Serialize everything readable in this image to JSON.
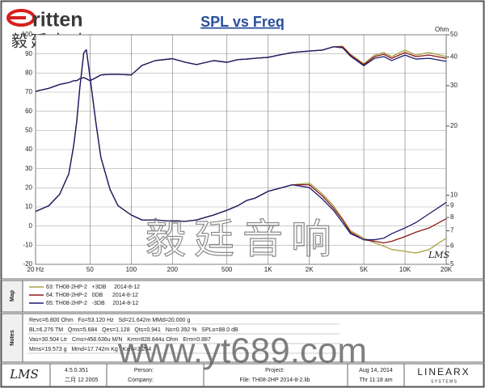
{
  "header": {
    "logo": "ritten",
    "logo_cn": "毅廷音响"
  },
  "chart_data": {
    "type": "line",
    "title": "SPL vs Freq",
    "y2_label": "Ohm",
    "corner_mark": "LMS",
    "x_scale": "log",
    "y2_scale": "log",
    "grid": true,
    "x": [
      20,
      25,
      30,
      35,
      38,
      40,
      42,
      45,
      47,
      50,
      55,
      60,
      70,
      80,
      100,
      120,
      150,
      200,
      250,
      300,
      400,
      500,
      600,
      700,
      800,
      1000,
      1200,
      1500,
      2000,
      2500,
      3000,
      3500,
      4000,
      5000,
      6000,
      7000,
      8000,
      10000,
      12000,
      15000,
      20000
    ],
    "xlim": [
      20,
      20000
    ],
    "xticks": [
      {
        "value": 20,
        "label": "20 Hz"
      },
      50,
      100,
      200,
      500,
      {
        "value": 1000,
        "label": "1K"
      },
      {
        "value": 2000,
        "label": "2K"
      },
      {
        "value": 5000,
        "label": "5K"
      },
      {
        "value": 10000,
        "label": "10K"
      },
      {
        "value": 20000,
        "label": "20K"
      }
    ],
    "ylim": [
      -20,
      100
    ],
    "yticks": [
      100,
      90,
      80,
      70,
      60,
      50,
      40,
      30,
      20,
      10,
      0,
      -10,
      -20
    ],
    "y2lim": [
      5,
      50
    ],
    "y2ticks": [
      50,
      40,
      30,
      20,
      10,
      9,
      8,
      7,
      6,
      5
    ],
    "series": [
      {
        "name": "63: TH08-2HP-2   +3DB     2014-8-12",
        "color": "#a8a040",
        "values": [
          70.4,
          72,
          74,
          75,
          76,
          76,
          77,
          77.6,
          77,
          76,
          77.5,
          79,
          79.3,
          79.3,
          79,
          84,
          86.5,
          87.5,
          85.6,
          84.4,
          86.5,
          85.6,
          87,
          87.3,
          87.7,
          88.2,
          89.4,
          90.7,
          91.5,
          92,
          93.7,
          94,
          89.8,
          84.8,
          89.4,
          90.7,
          88.6,
          92,
          89.4,
          90.7,
          88.6
        ]
      },
      {
        "name": "64: TH08-2HP-2   0DB      2014-8-12",
        "color": "#8b1a1a",
        "values": [
          70.4,
          72,
          74,
          75,
          76,
          76,
          77,
          77.6,
          77,
          76,
          77.5,
          79,
          79.3,
          79.3,
          79,
          84,
          86.5,
          87.5,
          85.6,
          84.4,
          86.5,
          85.6,
          87,
          87.3,
          87.7,
          88.2,
          89.4,
          90.7,
          91.5,
          92,
          93.7,
          93.7,
          89.4,
          84.4,
          88.6,
          89.8,
          87.7,
          90.7,
          88.6,
          89.4,
          87.7
        ]
      },
      {
        "name": "65: TH08-2HP-2   -3DB     2014-8-12",
        "color": "#1c1c6e",
        "values": [
          70.4,
          72,
          74,
          75,
          76,
          76,
          77,
          77.6,
          77,
          76,
          77.5,
          79,
          79.3,
          79.3,
          79,
          84,
          86.5,
          87.5,
          85.6,
          84.4,
          86.5,
          85.6,
          87,
          87.3,
          87.7,
          88.2,
          89.4,
          90.7,
          91.5,
          92,
          93.7,
          93.2,
          88.8,
          83.8,
          87.7,
          88.6,
          86.5,
          89.4,
          87.3,
          87.7,
          86.1
        ]
      },
      {
        "color": "#a8a040",
        "axis": "y2",
        "values": [
          8.5,
          9.0,
          10.1,
          12.4,
          16.5,
          21,
          29,
          41.7,
          43,
          32.7,
          21,
          14.6,
          10.6,
          9.0,
          8.2,
          7.8,
          7.8,
          7.7,
          7.7,
          7.8,
          8.2,
          8.6,
          9.0,
          9.5,
          9.7,
          10.4,
          10.7,
          11.1,
          11.3,
          10.1,
          9.0,
          7.9,
          7.0,
          6.5,
          6.2,
          6.0,
          5.8,
          5.7,
          5.6,
          5.8,
          6.5
        ]
      },
      {
        "color": "#8b1a1a",
        "axis": "y2",
        "values": [
          8.5,
          9.0,
          10.1,
          12.4,
          16.5,
          21,
          29,
          41.7,
          43,
          32.7,
          21,
          14.6,
          10.6,
          9.0,
          8.2,
          7.8,
          7.8,
          7.7,
          7.7,
          7.8,
          8.2,
          8.6,
          9.0,
          9.5,
          9.7,
          10.4,
          10.7,
          11.1,
          11.1,
          9.9,
          8.8,
          7.8,
          6.9,
          6.4,
          6.3,
          6.2,
          6.3,
          6.6,
          6.9,
          7.2,
          7.9
        ]
      },
      {
        "color": "#1c1c6e",
        "axis": "y2",
        "values": [
          8.5,
          9.0,
          10.1,
          12.4,
          16.5,
          21,
          29,
          41.7,
          43,
          32.7,
          21,
          14.6,
          10.6,
          9.0,
          8.2,
          7.8,
          7.8,
          7.7,
          7.7,
          7.8,
          8.2,
          8.6,
          9.0,
          9.5,
          9.7,
          10.4,
          10.7,
          11.1,
          10.8,
          9.6,
          8.6,
          7.6,
          6.8,
          6.4,
          6.4,
          6.5,
          6.8,
          7.2,
          7.6,
          8.3,
          9.3
        ]
      }
    ]
  },
  "map": {
    "title": "Map"
  },
  "notes": {
    "title": "Notes",
    "lines": [
      "Revc=6.800 Ohm   Fo=53.120 Hz   Sd=21.642m MMd=20.000 g",
      "BL=6.276 TM   Qms=5.684   Qes=1.128   Qts=0.941   No=0.392 %   SPLo=88.0 dB",
      "Vas=30.504 Ltr   Cms=458.636u M/N   Krm=828.844u Ohm   Erm=0.887",
      "Mms=19.573 g   Mmd=17.742m Kg   Kxm=3.254"
    ]
  },
  "footer": {
    "logo": "LMS",
    "version": "4.5.0.351",
    "build_date": "二月 12 2005",
    "person": "Person:",
    "company": "Company:",
    "project": "Project:",
    "file": "File: TH08-2HP    2014-8-2.lib",
    "date": "Aug 14, 2014",
    "time": "Thr 11:18 am",
    "brand": "LINEARX",
    "brand_sub": "S Y S T E M S"
  },
  "watermark": {
    "cn": "毅廷音响",
    "url": "www.yt689.com"
  }
}
